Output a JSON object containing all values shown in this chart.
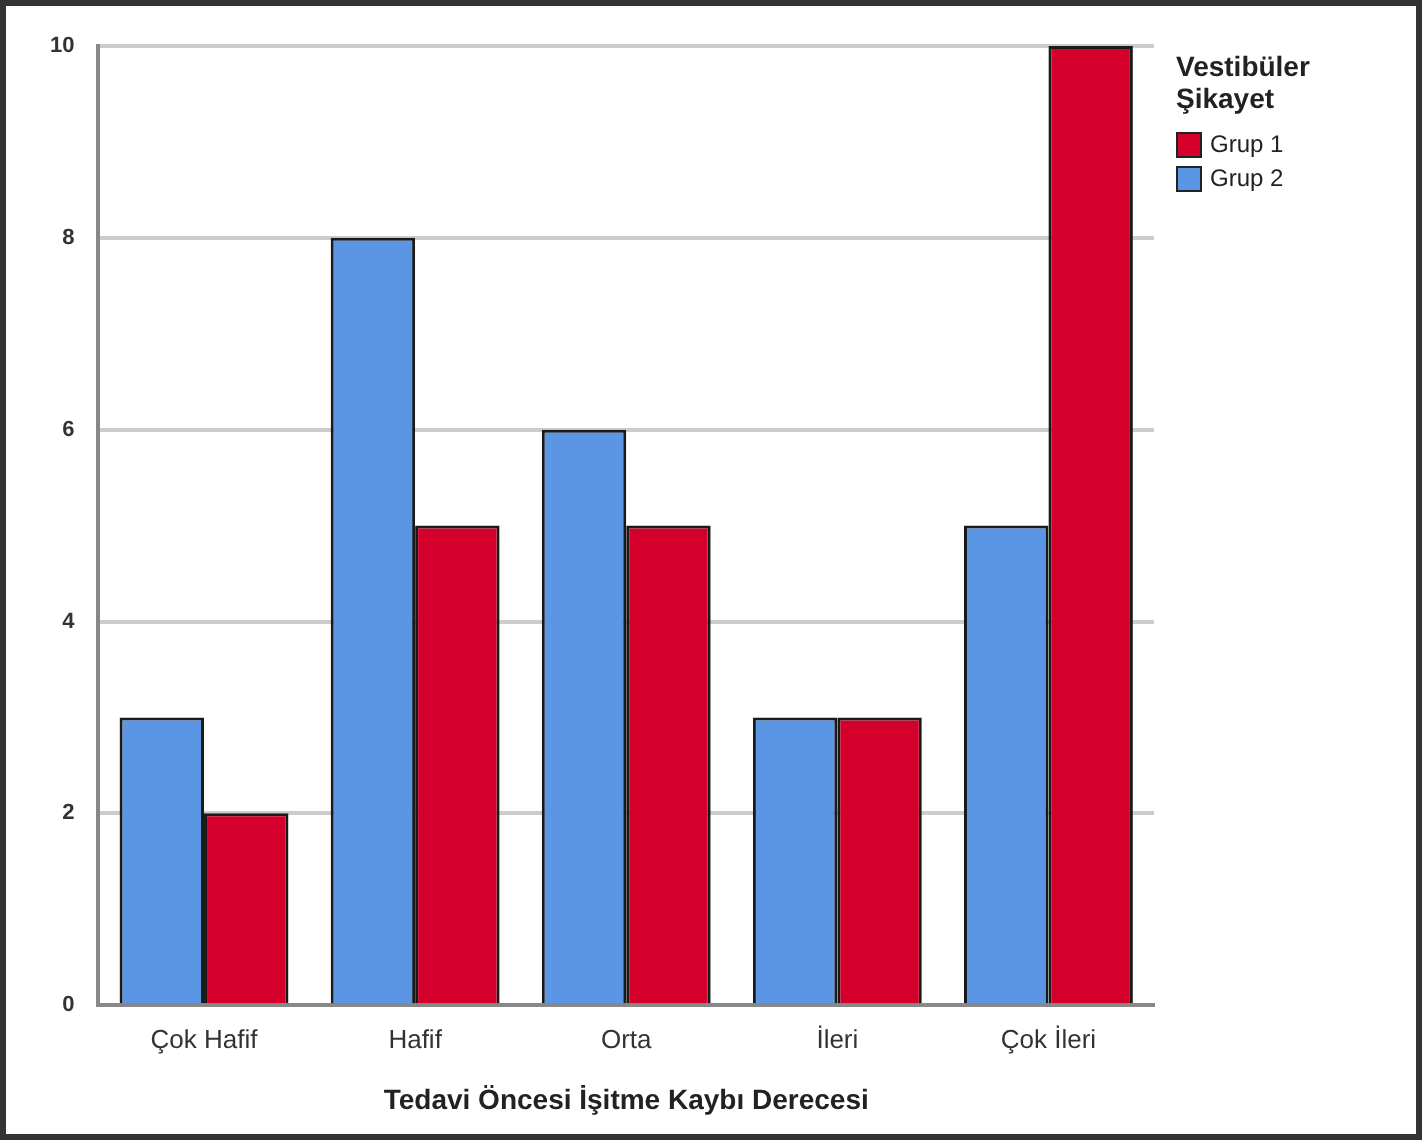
{
  "chart_data": {
    "type": "bar",
    "xlabel": "Tedavi Öncesi İşitme Kaybı Derecesi",
    "legend_title": "Vestibüler Şikayet",
    "categories": [
      "Çok Hafif",
      "Hafif",
      "Orta",
      "İleri",
      "Çok İleri"
    ],
    "series": [
      {
        "name": "Grup 2",
        "color": "#5a96e3",
        "values": [
          3,
          8,
          6,
          3,
          5
        ]
      },
      {
        "name": "Grup 1",
        "color": "#d4002b",
        "values": [
          2,
          5,
          5,
          3,
          10
        ]
      }
    ],
    "ylim": [
      0,
      10
    ],
    "yticks": [
      0,
      2,
      4,
      6,
      8,
      10
    ],
    "grid": "y",
    "legend": "top right"
  }
}
